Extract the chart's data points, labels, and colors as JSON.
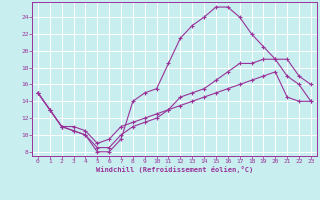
{
  "xlabel": "Windchill (Refroidissement éolien,°C)",
  "xlim": [
    -0.5,
    23.5
  ],
  "ylim": [
    7.5,
    25.8
  ],
  "yticks": [
    8,
    10,
    12,
    14,
    16,
    18,
    20,
    22,
    24
  ],
  "xticks": [
    0,
    1,
    2,
    3,
    4,
    5,
    6,
    7,
    8,
    9,
    10,
    11,
    12,
    13,
    14,
    15,
    16,
    17,
    18,
    19,
    20,
    21,
    22,
    23
  ],
  "bg_color": "#c8eef0",
  "grid_color": "#ffffff",
  "line_color": "#993399",
  "line1_y": [
    15.0,
    13.0,
    11.0,
    10.5,
    10.0,
    8.0,
    8.0,
    9.5,
    14.0,
    15.0,
    15.5,
    18.5,
    21.5,
    23.0,
    24.0,
    25.2,
    25.2,
    24.0,
    22.0,
    20.5,
    19.0,
    17.0,
    16.0,
    14.0
  ],
  "line2_y": [
    15.0,
    13.0,
    11.0,
    10.5,
    10.0,
    8.5,
    8.5,
    10.0,
    11.0,
    11.5,
    12.0,
    13.0,
    14.5,
    15.0,
    15.5,
    16.5,
    17.5,
    18.5,
    18.5,
    19.0,
    19.0,
    19.0,
    17.0,
    16.0
  ],
  "line3_y": [
    15.0,
    13.0,
    11.0,
    11.0,
    10.5,
    9.0,
    9.5,
    11.0,
    11.5,
    12.0,
    12.5,
    13.0,
    13.5,
    14.0,
    14.5,
    15.0,
    15.5,
    16.0,
    16.5,
    17.0,
    17.5,
    14.5,
    14.0,
    14.0
  ]
}
